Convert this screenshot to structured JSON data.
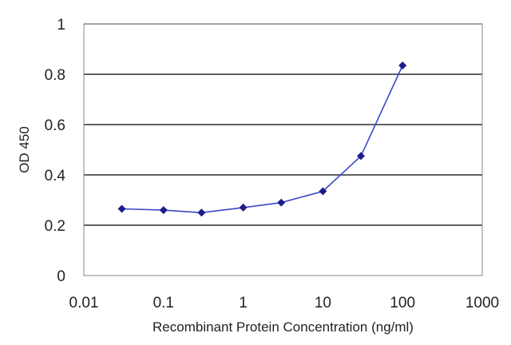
{
  "chart_data": {
    "type": "line",
    "title": "",
    "xlabel": "Recombinant Protein Concentration (ng/ml)",
    "ylabel": "OD 450",
    "x_scale": "log",
    "xlim": [
      0.01,
      1000
    ],
    "ylim": [
      0,
      1
    ],
    "x_ticks": [
      "0.01",
      "0.1",
      "1",
      "10",
      "100",
      "1000"
    ],
    "y_ticks": [
      "0",
      "0.2",
      "0.4",
      "0.6",
      "0.8",
      "1"
    ],
    "grid": "horizontal",
    "legend": "none",
    "series": [
      {
        "x": [
          0.03,
          0.1,
          0.3,
          1,
          3,
          10,
          30,
          100
        ],
        "values": [
          0.265,
          0.26,
          0.25,
          0.27,
          0.29,
          0.335,
          0.475,
          0.835
        ]
      }
    ],
    "colors": {
      "line": "#3a48c8",
      "marker": "#1c1c8c",
      "grid": "#000000",
      "plot_background": "#ffffff"
    }
  }
}
